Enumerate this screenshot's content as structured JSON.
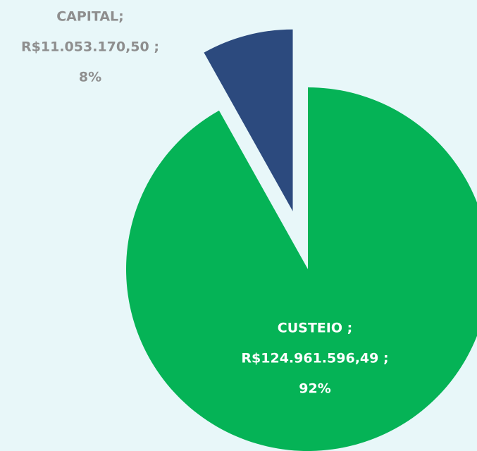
{
  "chart_data": {
    "type": "pie",
    "categories": [
      "CUSTEIO ;",
      "CAPITAL;"
    ],
    "values": [
      124961596.49,
      11053170.5
    ],
    "value_labels": [
      "R$124.961.596,49 ;",
      "R$11.053.170,50 ;"
    ],
    "percents": [
      92,
      8
    ],
    "percent_labels": [
      "92%",
      "8%"
    ],
    "colors": [
      "#05b356",
      "#2c4a7e"
    ],
    "label_colors": [
      "#ffffff",
      "#8e8e8e"
    ]
  }
}
